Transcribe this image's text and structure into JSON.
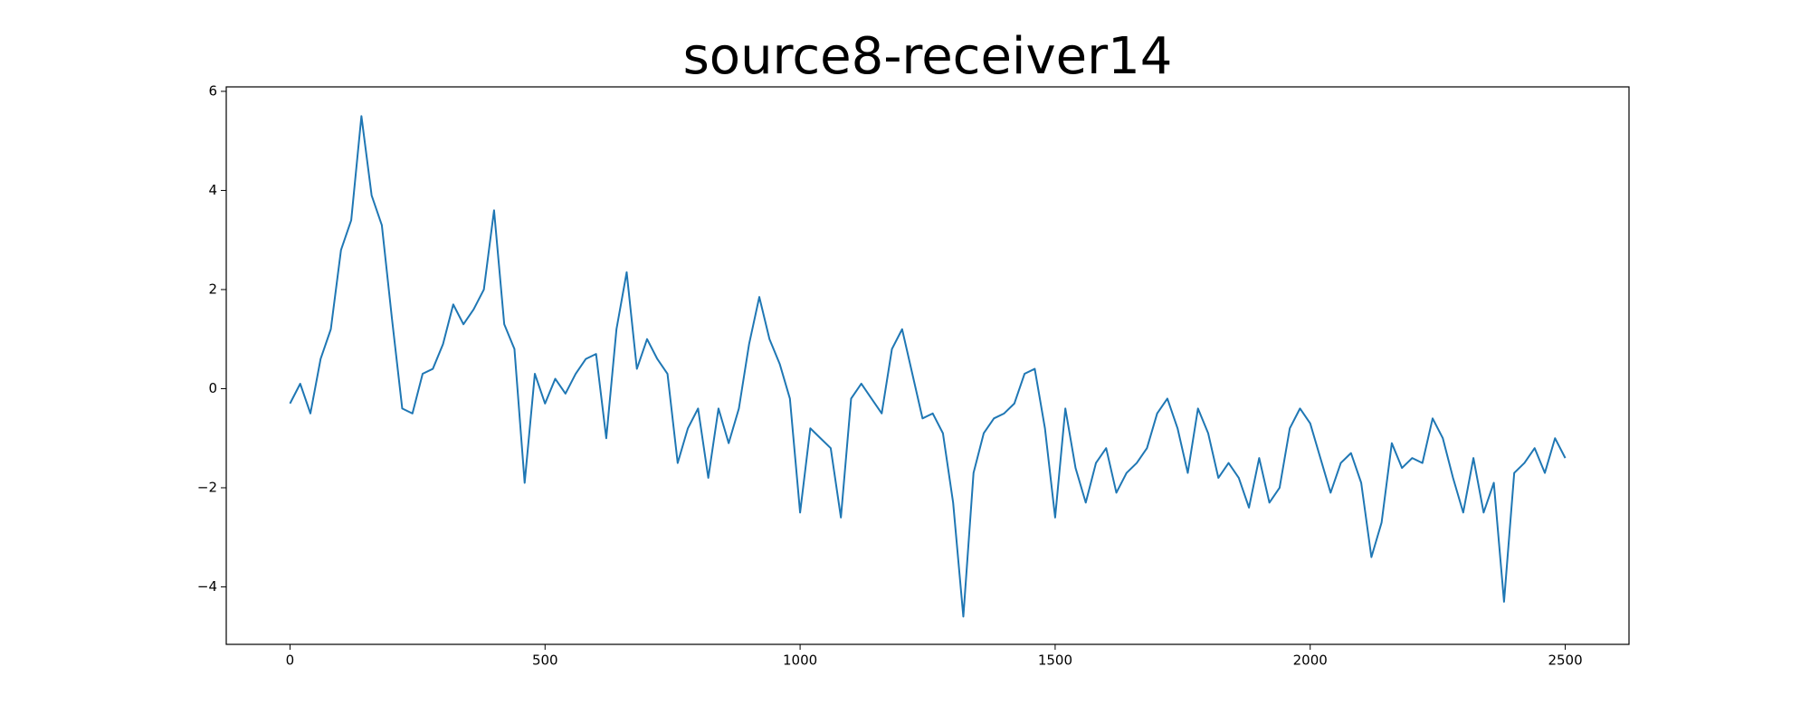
{
  "chart_data": {
    "type": "line",
    "title": "source8-receiver14",
    "x": [
      0,
      20,
      40,
      60,
      80,
      100,
      120,
      140,
      160,
      180,
      200,
      220,
      240,
      260,
      280,
      300,
      320,
      340,
      360,
      380,
      400,
      420,
      440,
      460,
      480,
      500,
      520,
      540,
      560,
      580,
      600,
      620,
      640,
      660,
      680,
      700,
      720,
      740,
      760,
      780,
      800,
      820,
      840,
      860,
      880,
      900,
      920,
      940,
      960,
      980,
      1000,
      1020,
      1040,
      1060,
      1080,
      1100,
      1120,
      1140,
      1160,
      1180,
      1200,
      1220,
      1240,
      1260,
      1280,
      1300,
      1320,
      1340,
      1360,
      1380,
      1400,
      1420,
      1440,
      1460,
      1480,
      1500,
      1520,
      1540,
      1560,
      1580,
      1600,
      1620,
      1640,
      1660,
      1680,
      1700,
      1720,
      1740,
      1760,
      1780,
      1800,
      1820,
      1840,
      1860,
      1880,
      1900,
      1920,
      1940,
      1960,
      1980,
      2000,
      2020,
      2040,
      2060,
      2080,
      2100,
      2120,
      2140,
      2160,
      2180,
      2200,
      2220,
      2240,
      2260,
      2280,
      2300,
      2320,
      2340,
      2360,
      2380,
      2400,
      2420,
      2440,
      2460,
      2480,
      2500
    ],
    "series": [
      {
        "color": "#1f77b4",
        "values": [
          -0.3,
          0.1,
          -0.5,
          0.6,
          1.2,
          2.8,
          3.4,
          5.5,
          3.9,
          3.3,
          1.4,
          -0.4,
          -0.5,
          0.3,
          0.4,
          0.9,
          1.7,
          1.3,
          1.6,
          2.0,
          3.6,
          1.3,
          0.8,
          -1.9,
          0.3,
          -0.3,
          0.2,
          -0.1,
          0.3,
          0.6,
          0.7,
          -1.0,
          1.2,
          2.35,
          0.4,
          1.0,
          0.6,
          0.3,
          -1.5,
          -0.8,
          -0.4,
          -1.8,
          -0.4,
          -1.1,
          -0.4,
          0.9,
          1.85,
          1.0,
          0.5,
          -0.2,
          -2.5,
          -0.8,
          -1.0,
          -1.2,
          -2.6,
          -0.2,
          0.1,
          -0.2,
          -0.5,
          0.8,
          1.2,
          0.3,
          -0.6,
          -0.5,
          -0.9,
          -2.3,
          -4.6,
          -1.7,
          -0.9,
          -0.6,
          -0.5,
          -0.3,
          0.3,
          0.4,
          -0.8,
          -2.6,
          -0.4,
          -1.6,
          -2.3,
          -1.5,
          -1.2,
          -2.1,
          -1.7,
          -1.5,
          -1.2,
          -0.5,
          -0.2,
          -0.8,
          -1.7,
          -0.4,
          -0.9,
          -1.8,
          -1.5,
          -1.8,
          -2.4,
          -1.4,
          -2.3,
          -2.0,
          -0.8,
          -0.4,
          -0.7,
          -1.4,
          -2.1,
          -1.5,
          -1.3,
          -1.9,
          -3.4,
          -2.7,
          -1.1,
          -1.6,
          -1.4,
          -1.5,
          -0.6,
          -1.0,
          -1.8,
          -2.5,
          -1.4,
          -2.5,
          -1.9,
          -4.3,
          -1.7,
          -1.5,
          -1.2,
          -1.7,
          -1.0,
          -1.4
        ]
      }
    ],
    "xlim": [
      -125,
      2625
    ],
    "ylim": [
      -5.16,
      6.09
    ],
    "xticks": [
      0,
      500,
      1000,
      1500,
      2000,
      2500
    ],
    "yticks": [
      {
        "value": -4,
        "label": "−4"
      },
      {
        "value": -2,
        "label": "−2"
      },
      0,
      2,
      4,
      6
    ]
  }
}
